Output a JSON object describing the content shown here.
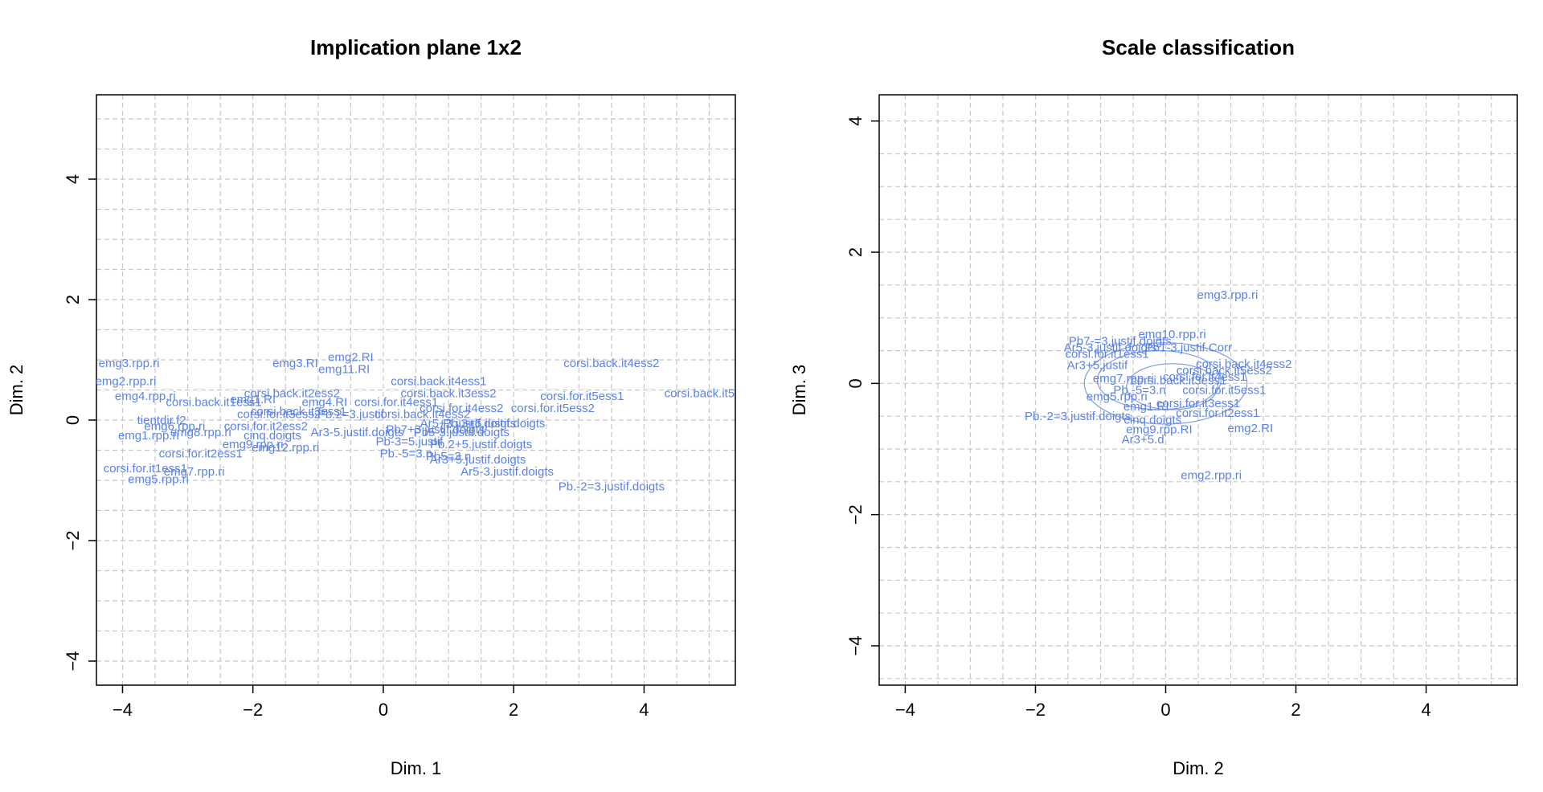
{
  "chart_data": [
    {
      "type": "scatter",
      "title": "Implication plane 1x2",
      "xlabel": "Dim. 1",
      "ylabel": "Dim. 2",
      "xlim": [
        -4.4,
        5.4
      ],
      "ylim": [
        -4.4,
        5.4
      ],
      "xticks": [
        -4,
        -2,
        0,
        2,
        4
      ],
      "yticks": [
        -4,
        -2,
        0,
        2,
        4
      ],
      "grid": true,
      "color": "#5b82e8",
      "points": [
        {
          "x": -3.9,
          "y": 0.95,
          "label": "emg3.rpp.ri"
        },
        {
          "x": -3.95,
          "y": 0.65,
          "label": "emg2.rpp.ri"
        },
        {
          "x": -3.65,
          "y": 0.4,
          "label": "emg4.rpp.ri"
        },
        {
          "x": -3.6,
          "y": -0.25,
          "label": "emg1.rpp.ri"
        },
        {
          "x": -3.65,
          "y": -0.8,
          "label": "corsi.for.it1ess1"
        },
        {
          "x": -2.9,
          "y": -0.85,
          "label": "emg7.rpp.ri"
        },
        {
          "x": -3.45,
          "y": -0.98,
          "label": "emg5.rpp.ri"
        },
        {
          "x": -3.4,
          "y": 0.0,
          "label": "tientdir.f2"
        },
        {
          "x": -3.2,
          "y": -0.1,
          "label": "emg6.rpp.ri"
        },
        {
          "x": -2.8,
          "y": -0.2,
          "label": "emg8.rpp.ri"
        },
        {
          "x": -2.8,
          "y": -0.55,
          "label": "corsi.for.it2ess1"
        },
        {
          "x": -2.6,
          "y": 0.3,
          "label": "corsi.back.it1ess1"
        },
        {
          "x": -2.0,
          "y": 0.35,
          "label": "emg1.RI"
        },
        {
          "x": -1.6,
          "y": 0.1,
          "label": "corsi.for.it3ess2"
        },
        {
          "x": -1.8,
          "y": -0.1,
          "label": "corsi.for.it2ess2"
        },
        {
          "x": -2.0,
          "y": -0.4,
          "label": "emg9.rpp.ri"
        },
        {
          "x": -1.7,
          "y": -0.25,
          "label": "cinq.doigts"
        },
        {
          "x": -1.5,
          "y": -0.45,
          "label": "emg12.rpp.ri"
        },
        {
          "x": -1.4,
          "y": 0.45,
          "label": "corsi.back.it2ess2"
        },
        {
          "x": -1.3,
          "y": 0.15,
          "label": "corsi.back.it3ess1"
        },
        {
          "x": -1.35,
          "y": 0.95,
          "label": "emg3.RI"
        },
        {
          "x": -0.5,
          "y": 1.05,
          "label": "emg2.RI"
        },
        {
          "x": -0.6,
          "y": 0.85,
          "label": "emg11.RI"
        },
        {
          "x": -0.9,
          "y": 0.3,
          "label": "emg4.RI"
        },
        {
          "x": -0.5,
          "y": 0.1,
          "label": "Pb.2=3.justif"
        },
        {
          "x": -0.4,
          "y": -0.2,
          "label": "Ar3-5.justif.doigts"
        },
        {
          "x": 0.2,
          "y": 0.3,
          "label": "corsi.for.it4ess1"
        },
        {
          "x": 0.4,
          "y": -0.35,
          "label": "Pb-3=5.justif"
        },
        {
          "x": 0.6,
          "y": 0.1,
          "label": "corsi.back.it4ess2"
        },
        {
          "x": 0.8,
          "y": -0.15,
          "label": "Pb7+3.justif.doigts"
        },
        {
          "x": 1.0,
          "y": 0.45,
          "label": "corsi.back.it3ess2"
        },
        {
          "x": 0.85,
          "y": 0.65,
          "label": "corsi.back.it4ess1"
        },
        {
          "x": 1.2,
          "y": 0.2,
          "label": "corsi.for.it4ess2"
        },
        {
          "x": 1.3,
          "y": -0.05,
          "label": "Ar5+3.justif.doigts"
        },
        {
          "x": 1.2,
          "y": -0.2,
          "label": "Pb5-3.justif.doigts"
        },
        {
          "x": 1.5,
          "y": -0.4,
          "label": "Pb.2+5.justif.doigts"
        },
        {
          "x": 0.35,
          "y": -0.55,
          "label": "Pb.-5=3.n"
        },
        {
          "x": 1.0,
          "y": -0.6,
          "label": "Pb5=3.n"
        },
        {
          "x": 1.45,
          "y": -0.65,
          "label": "Ar3+5.justif.doigts"
        },
        {
          "x": 1.7,
          "y": -0.05,
          "label": "Pb.3+5.justif.doigts"
        },
        {
          "x": 1.9,
          "y": -0.85,
          "label": "Ar5-3.justif.doigts"
        },
        {
          "x": 3.05,
          "y": 0.4,
          "label": "corsi.for.it5ess1"
        },
        {
          "x": 2.6,
          "y": 0.2,
          "label": "corsi.for.it5ess2"
        },
        {
          "x": 3.5,
          "y": 0.95,
          "label": "corsi.back.it4ess2"
        },
        {
          "x": 4.85,
          "y": 0.45,
          "label": "corsi.back.it5"
        },
        {
          "x": 3.5,
          "y": -1.1,
          "label": "Pb.-2=3.justif.doigts"
        }
      ]
    },
    {
      "type": "scatter",
      "title": "Scale classification",
      "xlabel": "Dim. 2",
      "ylabel": "Dim. 3",
      "xlim": [
        -4.4,
        5.4
      ],
      "ylim": [
        -4.6,
        4.4
      ],
      "xticks": [
        -4,
        -2,
        0,
        2,
        4
      ],
      "yticks": [
        -4,
        -2,
        0,
        2,
        4
      ],
      "grid": true,
      "color": "#5b82e8",
      "points": [
        {
          "x": 0.95,
          "y": 1.35,
          "label": "emg3.rpp.ri"
        },
        {
          "x": 0.1,
          "y": 0.75,
          "label": "emg10.rpp.ri"
        },
        {
          "x": -0.7,
          "y": 0.65,
          "label": "Pb7-=3.justif.doigts"
        },
        {
          "x": -0.85,
          "y": 0.55,
          "label": "Ar5-3.justif.doigts"
        },
        {
          "x": 0.35,
          "y": 0.55,
          "label": "Pb1-3.justif.Corr"
        },
        {
          "x": -0.9,
          "y": 0.45,
          "label": "corsi.for.it1ess1"
        },
        {
          "x": -1.05,
          "y": 0.28,
          "label": "Ar3+5.justif"
        },
        {
          "x": 1.2,
          "y": 0.3,
          "label": "corsi.back.it4ess2"
        },
        {
          "x": 0.9,
          "y": 0.2,
          "label": "corsi.back.it5ess2"
        },
        {
          "x": -0.65,
          "y": 0.08,
          "label": "emg7.rpp.ri"
        },
        {
          "x": 0.6,
          "y": 0.1,
          "label": "corsi.for.it4ess1"
        },
        {
          "x": 0.9,
          "y": -0.1,
          "label": "corsi.for.it5ess1"
        },
        {
          "x": -0.4,
          "y": -0.1,
          "label": "Pb.-5=3.n"
        },
        {
          "x": 0.2,
          "y": 0.05,
          "label": "corsi.back.it3ess1"
        },
        {
          "x": -0.75,
          "y": -0.2,
          "label": "emg5.rpp.ri"
        },
        {
          "x": 0.5,
          "y": -0.3,
          "label": "corsi.for.it3ess1"
        },
        {
          "x": -0.3,
          "y": -0.35,
          "label": "emg1.RI"
        },
        {
          "x": 0.8,
          "y": -0.45,
          "label": "corsi.for.it2ess1"
        },
        {
          "x": -1.35,
          "y": -0.5,
          "label": "Pb.-2=3.justif.doigts"
        },
        {
          "x": -0.2,
          "y": -0.55,
          "label": "cinq.doigts"
        },
        {
          "x": -0.1,
          "y": -0.7,
          "label": "emg9.rpp.RI"
        },
        {
          "x": -0.35,
          "y": -0.85,
          "label": "Ar3+5.d"
        },
        {
          "x": 1.3,
          "y": -0.68,
          "label": "emg2.RI"
        },
        {
          "x": 0.7,
          "y": -1.4,
          "label": "emg2.rpp.ri"
        }
      ]
    }
  ]
}
